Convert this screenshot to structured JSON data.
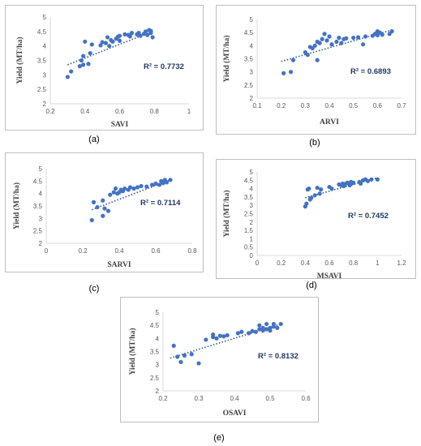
{
  "colors": {
    "marker": "#4472C4",
    "trend": "#2F5597",
    "r2": "#203864",
    "axis": "#D9D9D9"
  },
  "chart_data": [
    {
      "type": "scatter",
      "panel_label": "(a)",
      "xlabel": "SAVI",
      "ylabel": "Yield (MT/ha)",
      "r2": "R² = 0.7732",
      "xlim": [
        0.2,
        1
      ],
      "ylim": [
        2,
        5
      ],
      "xticks": [
        "0.2",
        "0.4",
        "0.6",
        "0.8",
        "1"
      ],
      "yticks": [
        "2",
        "2.5",
        "3",
        "3.5",
        "4",
        "4.5",
        "5"
      ],
      "trendline": [
        [
          0.3,
          3.35
        ],
        [
          0.78,
          4.48
        ]
      ],
      "points": [
        [
          0.3,
          2.93
        ],
        [
          0.32,
          3.12
        ],
        [
          0.37,
          3.3
        ],
        [
          0.38,
          3.5
        ],
        [
          0.39,
          3.35
        ],
        [
          0.39,
          3.65
        ],
        [
          0.4,
          4.15
        ],
        [
          0.42,
          3.38
        ],
        [
          0.43,
          3.75
        ],
        [
          0.44,
          4.05
        ],
        [
          0.49,
          4.02
        ],
        [
          0.5,
          4.13
        ],
        [
          0.52,
          4.1
        ],
        [
          0.53,
          4.3
        ],
        [
          0.54,
          4.0
        ],
        [
          0.55,
          4.2
        ],
        [
          0.56,
          4.15
        ],
        [
          0.58,
          4.25
        ],
        [
          0.59,
          4.32
        ],
        [
          0.6,
          4.35
        ],
        [
          0.6,
          4.18
        ],
        [
          0.63,
          4.4
        ],
        [
          0.65,
          4.38
        ],
        [
          0.66,
          4.33
        ],
        [
          0.67,
          4.45
        ],
        [
          0.7,
          4.4
        ],
        [
          0.71,
          4.45
        ],
        [
          0.72,
          4.35
        ],
        [
          0.74,
          4.42
        ],
        [
          0.75,
          4.5
        ],
        [
          0.76,
          4.38
        ],
        [
          0.77,
          4.55
        ],
        [
          0.78,
          4.45
        ],
        [
          0.79,
          4.3
        ],
        [
          0.78,
          4.52
        ]
      ]
    },
    {
      "type": "scatter",
      "panel_label": "(b)",
      "xlabel": "ARVI",
      "ylabel": "Yield (MT/ha)",
      "r2": "R² = 0.6893",
      "xlim": [
        0.1,
        0.7
      ],
      "ylim": [
        2,
        5
      ],
      "xticks": [
        "0.1",
        "0.2",
        "0.3",
        "0.4",
        "0.5",
        "0.6",
        "0.7"
      ],
      "yticks": [
        "2",
        "2.5",
        "3",
        "3.5",
        "4",
        "4.5",
        "5"
      ],
      "trendline": [
        [
          0.2,
          3.4
        ],
        [
          0.66,
          4.6
        ]
      ],
      "points": [
        [
          0.21,
          2.95
        ],
        [
          0.24,
          3.0
        ],
        [
          0.25,
          3.45
        ],
        [
          0.3,
          3.75
        ],
        [
          0.31,
          3.65
        ],
        [
          0.32,
          3.95
        ],
        [
          0.33,
          3.9
        ],
        [
          0.34,
          4.0
        ],
        [
          0.35,
          3.45
        ],
        [
          0.35,
          4.15
        ],
        [
          0.36,
          4.1
        ],
        [
          0.37,
          4.25
        ],
        [
          0.38,
          4.45
        ],
        [
          0.39,
          4.2
        ],
        [
          0.4,
          4.35
        ],
        [
          0.41,
          4.05
        ],
        [
          0.43,
          4.15
        ],
        [
          0.44,
          4.3
        ],
        [
          0.45,
          4.1
        ],
        [
          0.46,
          4.25
        ],
        [
          0.47,
          4.28
        ],
        [
          0.5,
          4.3
        ],
        [
          0.52,
          4.32
        ],
        [
          0.54,
          4.05
        ],
        [
          0.55,
          4.35
        ],
        [
          0.58,
          4.38
        ],
        [
          0.59,
          4.45
        ],
        [
          0.6,
          4.55
        ],
        [
          0.6,
          4.4
        ],
        [
          0.61,
          4.5
        ],
        [
          0.62,
          4.42
        ],
        [
          0.65,
          4.45
        ],
        [
          0.66,
          4.55
        ]
      ]
    },
    {
      "type": "scatter",
      "panel_label": "(c)",
      "xlabel": "SARVI",
      "ylabel": "Yield (MT/ha)",
      "r2": "R² = 0.7114",
      "xlim": [
        0,
        0.8
      ],
      "ylim": [
        2,
        5
      ],
      "xticks": [
        "0",
        "0.2",
        "0.4",
        "0.6",
        "0.8"
      ],
      "yticks": [
        "2",
        "2.5",
        "3",
        "3.5",
        "4",
        "4.5",
        "5"
      ],
      "trendline": [
        [
          0.25,
          3.35
        ],
        [
          0.68,
          4.55
        ]
      ],
      "points": [
        [
          0.25,
          2.93
        ],
        [
          0.26,
          3.65
        ],
        [
          0.28,
          3.45
        ],
        [
          0.31,
          3.1
        ],
        [
          0.31,
          3.72
        ],
        [
          0.32,
          3.4
        ],
        [
          0.34,
          3.3
        ],
        [
          0.35,
          3.95
        ],
        [
          0.37,
          4.05
        ],
        [
          0.38,
          4.2
        ],
        [
          0.39,
          4.0
        ],
        [
          0.4,
          4.05
        ],
        [
          0.41,
          4.15
        ],
        [
          0.42,
          4.1
        ],
        [
          0.43,
          4.2
        ],
        [
          0.45,
          4.15
        ],
        [
          0.46,
          4.25
        ],
        [
          0.48,
          4.2
        ],
        [
          0.5,
          4.25
        ],
        [
          0.52,
          4.3
        ],
        [
          0.55,
          4.28
        ],
        [
          0.58,
          4.35
        ],
        [
          0.6,
          4.4
        ],
        [
          0.62,
          4.35
        ],
        [
          0.63,
          4.5
        ],
        [
          0.64,
          4.42
        ],
        [
          0.65,
          4.55
        ],
        [
          0.66,
          4.45
        ],
        [
          0.68,
          4.55
        ]
      ]
    },
    {
      "type": "scatter",
      "panel_label": "(d)",
      "xlabel": "MSAVI",
      "ylabel": "Yield (MT/ha)",
      "r2": "R² = 0.7452",
      "xlim": [
        0,
        1.2
      ],
      "ylim": [
        0,
        5
      ],
      "xticks": [
        "0",
        "0.2",
        "0.4",
        "0.6",
        "0.8",
        "1",
        "1.2"
      ],
      "yticks": [
        "0",
        "0.5",
        "1",
        "1.5",
        "2",
        "2.5",
        "3",
        "3.5",
        "4",
        "4.5",
        "5"
      ],
      "trendline": [
        [
          0.4,
          3.45
        ],
        [
          1.0,
          4.65
        ]
      ],
      "points": [
        [
          0.4,
          2.93
        ],
        [
          0.41,
          3.1
        ],
        [
          0.42,
          3.95
        ],
        [
          0.43,
          4.0
        ],
        [
          0.44,
          3.35
        ],
        [
          0.45,
          3.45
        ],
        [
          0.48,
          3.6
        ],
        [
          0.5,
          4.05
        ],
        [
          0.52,
          3.7
        ],
        [
          0.53,
          3.95
        ],
        [
          0.6,
          4.1
        ],
        [
          0.62,
          4.0
        ],
        [
          0.68,
          4.25
        ],
        [
          0.7,
          4.2
        ],
        [
          0.71,
          4.3
        ],
        [
          0.72,
          4.15
        ],
        [
          0.73,
          4.28
        ],
        [
          0.75,
          4.35
        ],
        [
          0.76,
          4.3
        ],
        [
          0.77,
          4.2
        ],
        [
          0.78,
          4.4
        ],
        [
          0.8,
          4.35
        ],
        [
          0.85,
          4.4
        ],
        [
          0.86,
          4.3
        ],
        [
          0.88,
          4.5
        ],
        [
          0.9,
          4.55
        ],
        [
          0.92,
          4.45
        ],
        [
          0.95,
          4.55
        ],
        [
          1.0,
          4.55
        ]
      ]
    },
    {
      "type": "scatter",
      "panel_label": "(e)",
      "xlabel": "OSAVI",
      "ylabel": "Yield (MT/ha)",
      "r2": "R² = 0.8132",
      "xlim": [
        0.2,
        0.6
      ],
      "ylim": [
        2,
        5
      ],
      "xticks": [
        "0.2",
        "0.3",
        "0.4",
        "0.5",
        "0.6"
      ],
      "yticks": [
        "2",
        "2.5",
        "3",
        "3.5",
        "4",
        "4.5",
        "5"
      ],
      "trendline": [
        [
          0.22,
          3.25
        ],
        [
          0.53,
          4.55
        ]
      ],
      "points": [
        [
          0.23,
          3.72
        ],
        [
          0.24,
          3.3
        ],
        [
          0.25,
          3.1
        ],
        [
          0.26,
          3.35
        ],
        [
          0.28,
          3.4
        ],
        [
          0.3,
          3.05
        ],
        [
          0.32,
          3.95
        ],
        [
          0.34,
          4.05
        ],
        [
          0.34,
          4.15
        ],
        [
          0.35,
          4.0
        ],
        [
          0.36,
          4.1
        ],
        [
          0.37,
          4.08
        ],
        [
          0.38,
          4.12
        ],
        [
          0.41,
          4.2
        ],
        [
          0.42,
          4.25
        ],
        [
          0.44,
          4.2
        ],
        [
          0.45,
          4.28
        ],
        [
          0.46,
          4.25
        ],
        [
          0.47,
          4.35
        ],
        [
          0.47,
          4.5
        ],
        [
          0.48,
          4.3
        ],
        [
          0.48,
          4.4
        ],
        [
          0.49,
          4.55
        ],
        [
          0.49,
          4.35
        ],
        [
          0.5,
          4.4
        ],
        [
          0.5,
          4.3
        ],
        [
          0.51,
          4.45
        ],
        [
          0.51,
          4.55
        ],
        [
          0.52,
          4.4
        ],
        [
          0.53,
          4.55
        ]
      ]
    }
  ]
}
